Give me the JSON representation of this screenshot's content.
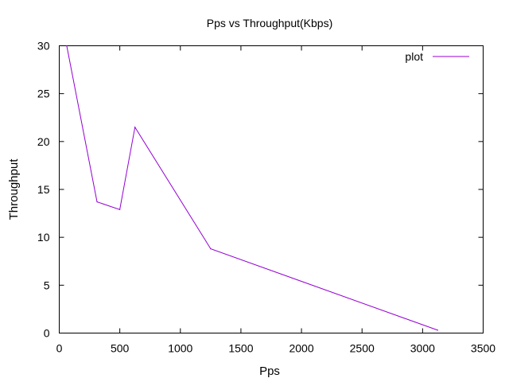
{
  "chart_data": {
    "type": "line",
    "title": "Pps vs Throughput(Kbps)",
    "xlabel": "Pps",
    "ylabel": "Throughput",
    "xlim": [
      0,
      3500
    ],
    "ylim": [
      0,
      30
    ],
    "xticks": [
      0,
      500,
      1000,
      1500,
      2000,
      2500,
      3000,
      3500
    ],
    "yticks": [
      0,
      5,
      10,
      15,
      20,
      25,
      30
    ],
    "grid": false,
    "legend_position": "top-right",
    "series": [
      {
        "name": "plot",
        "color": "#9400d3",
        "x": [
          62,
          312,
          500,
          625,
          1250,
          3125
        ],
        "y": [
          30.0,
          13.7,
          12.9,
          21.5,
          8.8,
          0.3
        ]
      }
    ]
  }
}
